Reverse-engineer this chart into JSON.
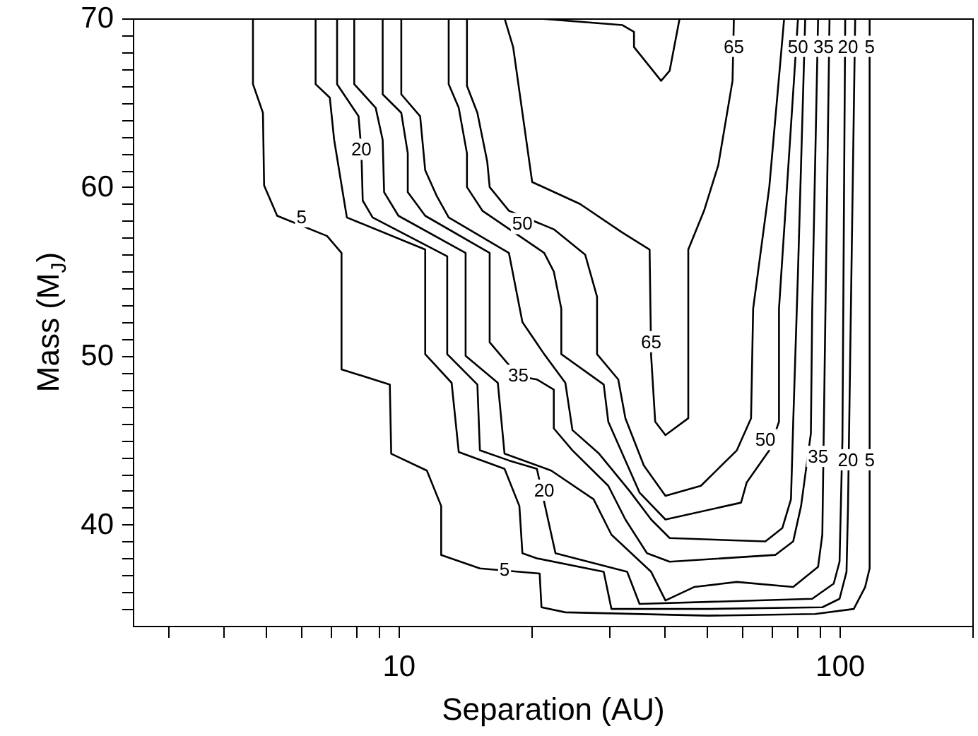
{
  "chart_data": {
    "type": "line",
    "xlabel": "Separation (AU)",
    "ylabel": "Mass (M$_{J}$)",
    "log": "x",
    "xlim": [
      2.5,
      200
    ],
    "ylim": [
      34,
      70
    ],
    "xticks": [
      {
        "value": 3,
        "label": null
      },
      {
        "value": 4,
        "label": null
      },
      {
        "value": 5,
        "label": null
      },
      {
        "value": 6,
        "label": null
      },
      {
        "value": 7,
        "label": null
      },
      {
        "value": 8,
        "label": null
      },
      {
        "value": 9,
        "label": null
      },
      10,
      {
        "value": 20,
        "label": null
      },
      {
        "value": 30,
        "label": null
      },
      {
        "value": 40,
        "label": null
      },
      {
        "value": 50,
        "label": null
      },
      {
        "value": 60,
        "label": null
      },
      {
        "value": 70,
        "label": null
      },
      {
        "value": 80,
        "label": null
      },
      {
        "value": 90,
        "label": null
      },
      100,
      {
        "value": 200,
        "label": null
      }
    ],
    "yticks": [
      {
        "value": 35,
        "label": null
      },
      {
        "value": 36,
        "label": null
      },
      {
        "value": 37,
        "label": null
      },
      {
        "value": 38,
        "label": null
      },
      {
        "value": 39,
        "label": null
      },
      40,
      {
        "value": 41,
        "label": null
      },
      {
        "value": 42,
        "label": null
      },
      {
        "value": 43,
        "label": null
      },
      {
        "value": 44,
        "label": null
      },
      {
        "value": 45,
        "label": null
      },
      {
        "value": 46,
        "label": null
      },
      {
        "value": 47,
        "label": null
      },
      {
        "value": 48,
        "label": null
      },
      {
        "value": 49,
        "label": null
      },
      50,
      {
        "value": 51,
        "label": null
      },
      {
        "value": 52,
        "label": null
      },
      {
        "value": 53,
        "label": null
      },
      {
        "value": 54,
        "label": null
      },
      {
        "value": 55,
        "label": null
      },
      {
        "value": 56,
        "label": null
      },
      {
        "value": 57,
        "label": null
      },
      {
        "value": 58,
        "label": null
      },
      {
        "value": 59,
        "label": null
      },
      60,
      {
        "value": 61,
        "label": null
      },
      {
        "value": 62,
        "label": null
      },
      {
        "value": 63,
        "label": null
      },
      {
        "value": 64,
        "label": null
      },
      {
        "value": 65,
        "label": null
      },
      {
        "value": 66,
        "label": null
      },
      {
        "value": 67,
        "label": null
      },
      {
        "value": 68,
        "label": null
      },
      {
        "value": 69,
        "label": null
      },
      70
    ],
    "series": [
      {
        "color": "#000000",
        "x": [
          4.68,
          4.68,
          4.93,
          4.96,
          5.31,
          6.89,
          7.43,
          7.43,
          9.56,
          9.63,
          11.6,
          12.5,
          12.5,
          15.3,
          20.9,
          21.1,
          23.9,
          50.4,
          88.1,
          107.7,
          114.3,
          117,
          117
        ],
        "values": [
          70,
          66.1,
          64.4,
          60.1,
          58.3,
          57.1,
          56.1,
          49.2,
          48.3,
          44.2,
          43.2,
          41.1,
          38.2,
          37.4,
          37.1,
          35.1,
          34.8,
          34.6,
          34.7,
          35,
          36.3,
          37.4,
          70
        ]
      },
      {
        "color": "#000000",
        "x": [
          6.49,
          6.49,
          6.99,
          7.15,
          7.53,
          7.64,
          11.5,
          11.5,
          13.2,
          13.7,
          17.4,
          18.8,
          19.1,
          20.6,
          29.2,
          30.4,
          50.4,
          91.4,
          100,
          103.7,
          104.5,
          106.1,
          108.5
        ],
        "values": [
          70,
          66.1,
          65.3,
          62.8,
          59.2,
          58.2,
          56.3,
          50.1,
          48.4,
          44.3,
          43.3,
          41.1,
          38.3,
          38,
          37.2,
          35,
          35,
          35.1,
          35.6,
          37.2,
          41,
          52.8,
          70
        ]
      },
      {
        "color": "#000000",
        "x": [
          7.26,
          7.26,
          8.12,
          8.24,
          8.3,
          8.74,
          12.9,
          12.9,
          15.1,
          15.3,
          17.8,
          20.6,
          22.7,
          33,
          35.2,
          86.7,
          97,
          100,
          101.5,
          103
        ],
        "values": [
          70,
          66.1,
          64.2,
          62.2,
          59.2,
          58.2,
          55.9,
          50.1,
          48.3,
          44.4,
          43.8,
          43.3,
          38.3,
          37.2,
          35.3,
          35.6,
          36.5,
          37.8,
          45,
          70
        ]
      },
      {
        "color": "#000000",
        "x": [
          7.94,
          7.94,
          8.88,
          9.21,
          9.28,
          10,
          14.2,
          14.2,
          16.8,
          17.4,
          22.2,
          27.7,
          30.4,
          37.4,
          40.3,
          46.8,
          58.5,
          78.5,
          89.4,
          91.4,
          94.9
        ],
        "values": [
          70,
          66.1,
          64.7,
          62.8,
          59.7,
          58.3,
          56.1,
          50,
          48.4,
          44.2,
          43.2,
          41.5,
          39.4,
          37.2,
          35.5,
          36.3,
          36.6,
          36.3,
          37.5,
          39.4,
          70
        ]
      },
      {
        "color": "#000000",
        "x": [
          9.21,
          9.21,
          10.15,
          10.5,
          10.5,
          11.5,
          16.1,
          16.1,
          18.7,
          20.6,
          22.5,
          22.5,
          24.8,
          29.9,
          32.7,
          36.6,
          41.2,
          71.5,
          78.5,
          81.8,
          86.1,
          86.7,
          89.4
        ],
        "values": [
          70,
          65.5,
          64.4,
          62,
          59.7,
          58.3,
          56.1,
          50.8,
          48.8,
          48.6,
          48,
          45.7,
          44.4,
          42.3,
          40.3,
          38.3,
          37.8,
          38.2,
          39,
          41.1,
          45.4,
          52.8,
          70
        ]
      },
      {
        "color": "#000000",
        "x": [
          10.15,
          10.15,
          11.2,
          11.5,
          12.2,
          13,
          17.8,
          19.1,
          21.4,
          23.9,
          24.8,
          28.5,
          33.4,
          37.4,
          41.2,
          67.9,
          74.2,
          77.6,
          78.5,
          80.5,
          83.6
        ],
        "values": [
          70,
          65.5,
          64.2,
          61,
          59.5,
          58.2,
          56.1,
          52,
          50.1,
          48.4,
          45.6,
          44.2,
          42,
          40.3,
          39.2,
          39,
          39.8,
          41.5,
          46,
          55,
          70
        ]
      },
      {
        "color": "#000000",
        "x": [
          13,
          13,
          13.7,
          14.3,
          14.3,
          15.5,
          21.4,
          22.5,
          23.4,
          23.4,
          29.2,
          29.9,
          35.2,
          40.3,
          59.8,
          61.6,
          69.3,
          72.9,
          72.9,
          76,
          80.5
        ],
        "values": [
          70,
          66.1,
          64.7,
          62,
          60,
          58.6,
          56.1,
          55,
          52.8,
          50.1,
          48.3,
          46.1,
          41.9,
          40.3,
          41.3,
          42.5,
          44.4,
          46.1,
          52.8,
          60,
          70
        ]
      },
      {
        "color": "#000000",
        "x": [
          14.3,
          14.3,
          15.1,
          15.9,
          16.1,
          17.8,
          22.5,
          26.5,
          28.2,
          28.2,
          31.5,
          32.7,
          36,
          40.3,
          48.5,
          58.5,
          63,
          63.7,
          69.3,
          74.9
        ],
        "values": [
          70,
          66,
          64.4,
          61.5,
          60,
          58.6,
          57.5,
          56,
          53.5,
          50.1,
          48.6,
          46.3,
          43.5,
          41.7,
          42.3,
          44.4,
          46.3,
          52.8,
          60,
          70
        ]
      },
      {
        "color": "#000000",
        "x": [
          17.4,
          18.2,
          20.1,
          25.8,
          32.2,
          37.1,
          37.4,
          38.2,
          40.3,
          45.4,
          45.4,
          49.3,
          53.1,
          57.2,
          57.6
        ],
        "values": [
          70,
          68.3,
          60.3,
          59,
          57.3,
          56.3,
          50,
          46.1,
          45.3,
          46.3,
          56.3,
          58.6,
          61.3,
          66.3,
          70
        ]
      },
      {
        "color": "#000000",
        "x": [
          20.6,
          32.2,
          34.2,
          34.2,
          39.4,
          41.2,
          43.4
        ],
        "values": [
          70,
          69.6,
          69.2,
          68.3,
          66.3,
          66.9,
          70
        ]
      }
    ],
    "annotations": [
      {
        "text": "5",
        "x": 6.03,
        "y": 58.2
      },
      {
        "text": "5",
        "x": 17.4,
        "y": 37.3
      },
      {
        "text": "5",
        "x": 117,
        "y": 43.8
      },
      {
        "text": "5",
        "x": 117,
        "y": 68.3
      },
      {
        "text": "20",
        "x": 8.24,
        "y": 62.2
      },
      {
        "text": "20",
        "x": 21.4,
        "y": 42
      },
      {
        "text": "20",
        "x": 104.5,
        "y": 43.8
      },
      {
        "text": "20",
        "x": 104.5,
        "y": 68.3
      },
      {
        "text": "35",
        "x": 18.7,
        "y": 48.8
      },
      {
        "text": "35",
        "x": 89.4,
        "y": 44
      },
      {
        "text": "35",
        "x": 92,
        "y": 68.3
      },
      {
        "text": "50",
        "x": 19.1,
        "y": 57.8
      },
      {
        "text": "50",
        "x": 67.9,
        "y": 45
      },
      {
        "text": "50",
        "x": 80.5,
        "y": 68.3
      },
      {
        "text": "65",
        "x": 37.4,
        "y": 50.8
      },
      {
        "text": "65",
        "x": 57.6,
        "y": 68.3
      }
    ]
  }
}
